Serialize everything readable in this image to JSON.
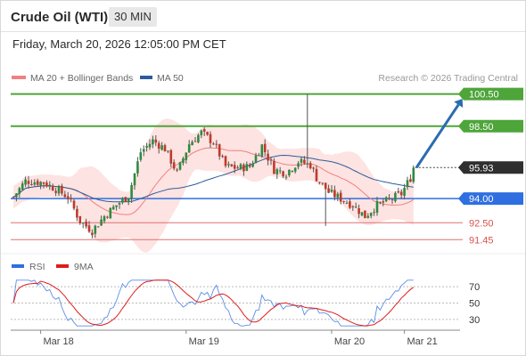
{
  "header": {
    "title": "Crude Oil (WTI)",
    "timeframe": "30 MIN",
    "datetime": "Friday, March 20, 2026 12:05:00 PM CET"
  },
  "chart_data": [
    {
      "type": "candlestick",
      "legend": [
        {
          "label": "MA 20 + Bollinger Bands",
          "color": "#f08080"
        },
        {
          "label": "MA 50",
          "color": "#2c5c9c"
        }
      ],
      "credit": "Research © 2026 Trading Central",
      "ylim": [
        90.8,
        101.2
      ],
      "levels": [
        {
          "value": 100.5,
          "label": "100.50",
          "style": "resistance",
          "color": "#4ea53a"
        },
        {
          "value": 98.5,
          "label": "98.50",
          "style": "resistance",
          "color": "#4ea53a"
        },
        {
          "value": 95.93,
          "label": "95.93",
          "style": "last",
          "color": "#2f2f2f"
        },
        {
          "value": 94.0,
          "label": "94.00",
          "style": "pivot",
          "color": "#2f6fe0"
        },
        {
          "value": 92.5,
          "label": "92.50",
          "style": "support",
          "color": "#e07070"
        },
        {
          "value": 91.45,
          "label": "91.45",
          "style": "support",
          "color": "#e07070"
        }
      ],
      "x_labels": [
        "Mar 18",
        "Mar 19",
        "Mar 20",
        "Mar 21"
      ],
      "x_label_index": [
        9,
        57,
        105,
        129
      ],
      "candle_count": 133,
      "last_price": 95.93,
      "arrow": {
        "from_index": 133,
        "from": 95.93,
        "to_index": 143,
        "to": 100.5
      },
      "price_path": [
        [
          0,
          94.1
        ],
        [
          4,
          95.1
        ],
        [
          10,
          95.0
        ],
        [
          14,
          94.6
        ],
        [
          18,
          94.1
        ],
        [
          22,
          92.6
        ],
        [
          26,
          92.0
        ],
        [
          30,
          92.9
        ],
        [
          34,
          93.6
        ],
        [
          38,
          94.2
        ],
        [
          42,
          96.9
        ],
        [
          46,
          97.6
        ],
        [
          50,
          97.1
        ],
        [
          54,
          95.6
        ],
        [
          58,
          97.4
        ],
        [
          62,
          98.1
        ],
        [
          66,
          97.5
        ],
        [
          70,
          96.0
        ],
        [
          74,
          95.9
        ],
        [
          78,
          96.0
        ],
        [
          82,
          97.3
        ],
        [
          86,
          95.8
        ],
        [
          90,
          95.6
        ],
        [
          94,
          96.3
        ],
        [
          98,
          96.1
        ],
        [
          100,
          95.3
        ],
        [
          104,
          94.4
        ],
        [
          108,
          94.0
        ],
        [
          112,
          93.6
        ],
        [
          116,
          92.9
        ],
        [
          120,
          93.6
        ],
        [
          124,
          93.9
        ],
        [
          128,
          94.3
        ],
        [
          131,
          95.3
        ],
        [
          133,
          95.93
        ]
      ]
    },
    {
      "type": "line",
      "legend": [
        {
          "label": "RSI",
          "color": "#2f6fe0"
        },
        {
          "label": "9MA",
          "color": "#e01b1b"
        }
      ],
      "ylim": [
        20,
        80
      ],
      "y_ticks": [
        70,
        50,
        30
      ],
      "ticks": [
        "70",
        "50",
        "30"
      ]
    }
  ]
}
